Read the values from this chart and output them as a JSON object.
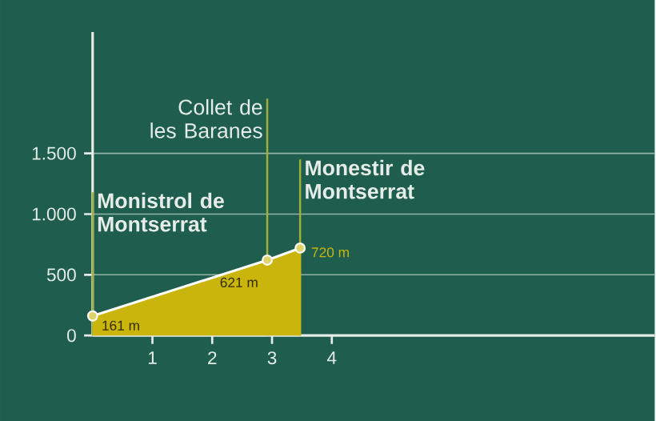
{
  "chart_data": {
    "type": "area",
    "x": [
      0.0,
      2.92,
      3.47
    ],
    "series": [
      {
        "color": "#c9b50c",
        "values": [
          161,
          621,
          720
        ],
        "value_labels": [
          "161 m",
          "621 m",
          "720 m"
        ]
      }
    ],
    "marker": "circle",
    "xlim": [
      0,
      9.4
    ],
    "ylim": [
      0,
      2500
    ],
    "xticks": [
      1,
      2,
      3,
      4
    ],
    "yticks": [
      0,
      500,
      {
        "value": 1000,
        "label": "1.000"
      },
      {
        "value": 1500,
        "label": "1.500"
      }
    ],
    "grid": "y",
    "ref_lines": [
      {
        "axis": "x",
        "value": 0.0,
        "label": "**Monistrol de Montserrat**",
        "color": "#a3b13a"
      },
      {
        "axis": "x",
        "value": 2.92,
        "label": "Collet de les Baranes",
        "color": "#a3b13a"
      },
      {
        "axis": "x",
        "value": 3.47,
        "label": "**Monestir de Montserrat**",
        "color": "#a3b13a"
      }
    ]
  }
}
